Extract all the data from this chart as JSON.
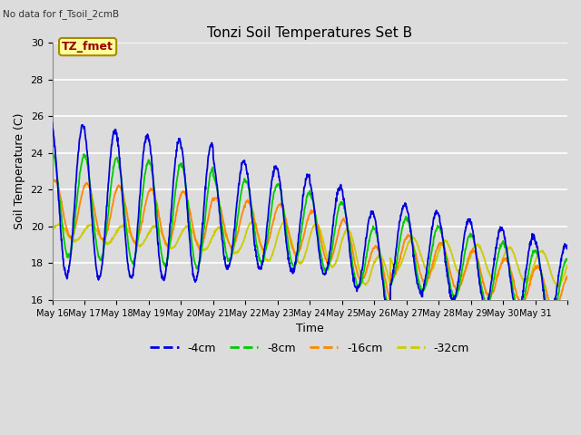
{
  "title": "Tonzi Soil Temperatures Set B",
  "subtitle": "No data for f_Tsoil_2cmB",
  "xlabel": "Time",
  "ylabel": "Soil Temperature (C)",
  "ylim": [
    16,
    30
  ],
  "xlim": [
    0,
    16
  ],
  "background_color": "#dcdcdc",
  "plot_bg_color": "#dcdcdc",
  "grid_color": "#ffffff",
  "legend_labels": [
    "-4cm",
    "-8cm",
    "-16cm",
    "-32cm"
  ],
  "legend_colors": [
    "#0000dd",
    "#00cc00",
    "#ff8800",
    "#cccc00"
  ],
  "annotation_text": "TZ_fmet",
  "annotation_color": "#990000",
  "annotation_bg": "#ffff99",
  "annotation_border": "#aa8800",
  "xtick_labels": [
    "May 16",
    "May 17",
    "May 18",
    "May 19",
    "May 20",
    "May 21",
    "May 22",
    "May 23",
    "May 24",
    "May 25",
    "May 26",
    "May 27",
    "May 28",
    "May 29",
    "May 30",
    "May 31"
  ],
  "ytick_values": [
    16,
    18,
    20,
    22,
    24,
    26,
    28,
    30
  ]
}
